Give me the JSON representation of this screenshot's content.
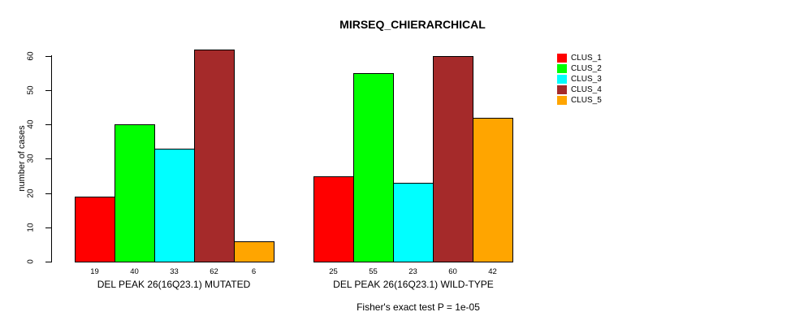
{
  "chart_data": {
    "type": "bar",
    "title": "MIRSEQ_CHIERARCHICAL",
    "ylabel": "number of cases",
    "xlabel": "",
    "categories": [
      "DEL PEAK 26(16Q23.1) MUTATED",
      "DEL PEAK 26(16Q23.1) WILD-TYPE"
    ],
    "series": [
      {
        "name": "CLUS_1",
        "color": "#FF0000",
        "values": [
          19,
          25
        ]
      },
      {
        "name": "CLUS_2",
        "color": "#00FF00",
        "values": [
          40,
          55
        ]
      },
      {
        "name": "CLUS_3",
        "color": "#00FFFF",
        "values": [
          33,
          23
        ]
      },
      {
        "name": "CLUS_4",
        "color": "#A52A2A",
        "values": [
          62,
          60
        ]
      },
      {
        "name": "CLUS_5",
        "color": "#FFA500",
        "values": [
          6,
          42
        ]
      }
    ],
    "yticks": [
      0,
      10,
      20,
      30,
      40,
      50,
      60
    ],
    "ylim": [
      0,
      62
    ],
    "grid": false,
    "bar_value_labels": true,
    "legend_position": "right",
    "annotation": "Fisher's exact test P = 1e-05"
  }
}
